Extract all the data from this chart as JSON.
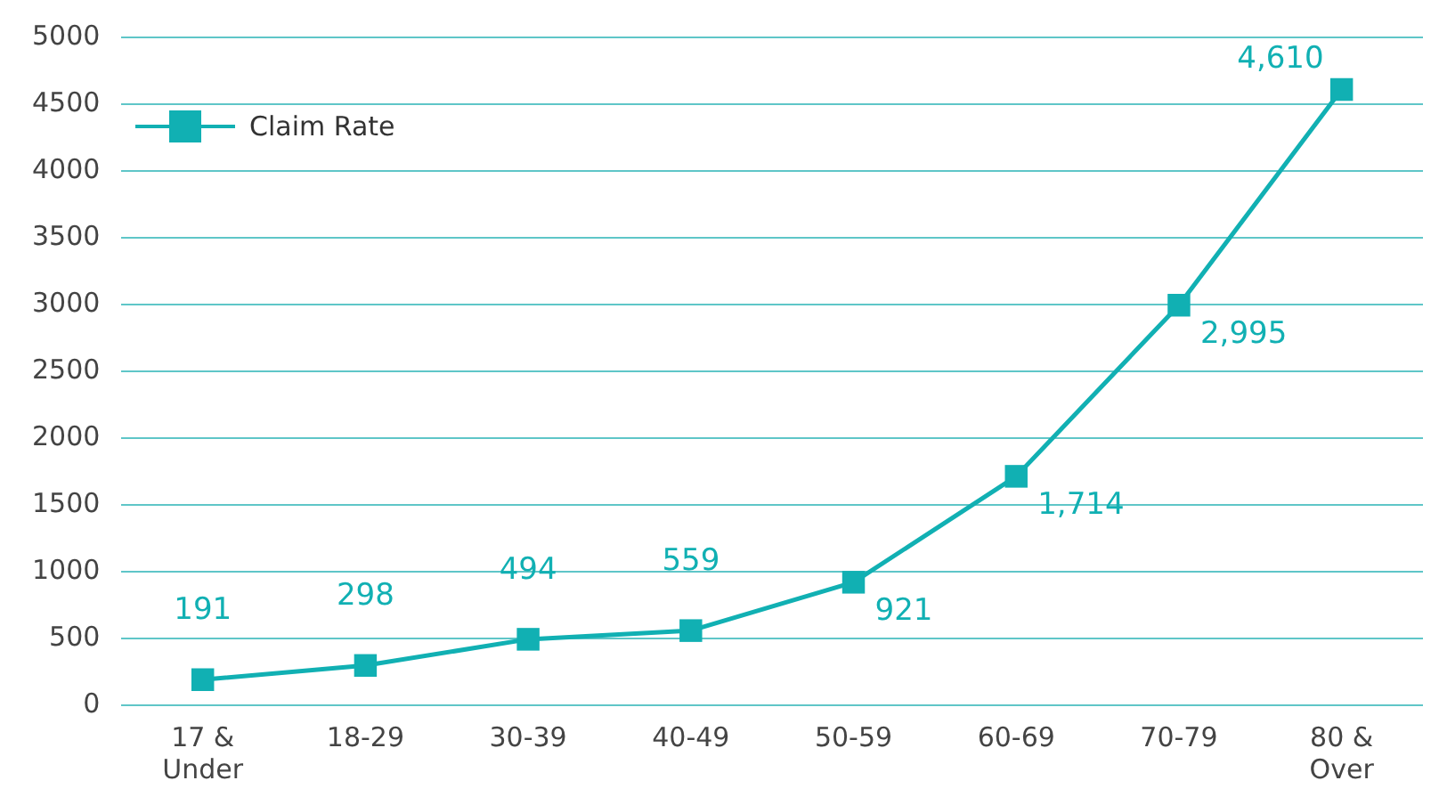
{
  "chart_data": {
    "type": "line",
    "categories": [
      "17 & Under",
      "18-29",
      "30-39",
      "40-49",
      "50-59",
      "60-69",
      "70-79",
      "80 & Over"
    ],
    "series": [
      {
        "name": "Claim Rate",
        "color": "#11b0b3",
        "values": [
          191,
          298,
          494,
          559,
          921,
          1714,
          2995,
          4610
        ],
        "value_labels": [
          "191",
          "298",
          "494",
          "559",
          "921",
          "1,714",
          "2,995",
          "4,610"
        ]
      }
    ],
    "ylim": [
      0,
      5000
    ],
    "yticks": [
      0,
      500,
      1000,
      1500,
      2000,
      2500,
      3000,
      3500,
      4000,
      4500,
      5000
    ],
    "grid": "y",
    "legend": "top left",
    "marker": "square",
    "line_style": "solid"
  }
}
